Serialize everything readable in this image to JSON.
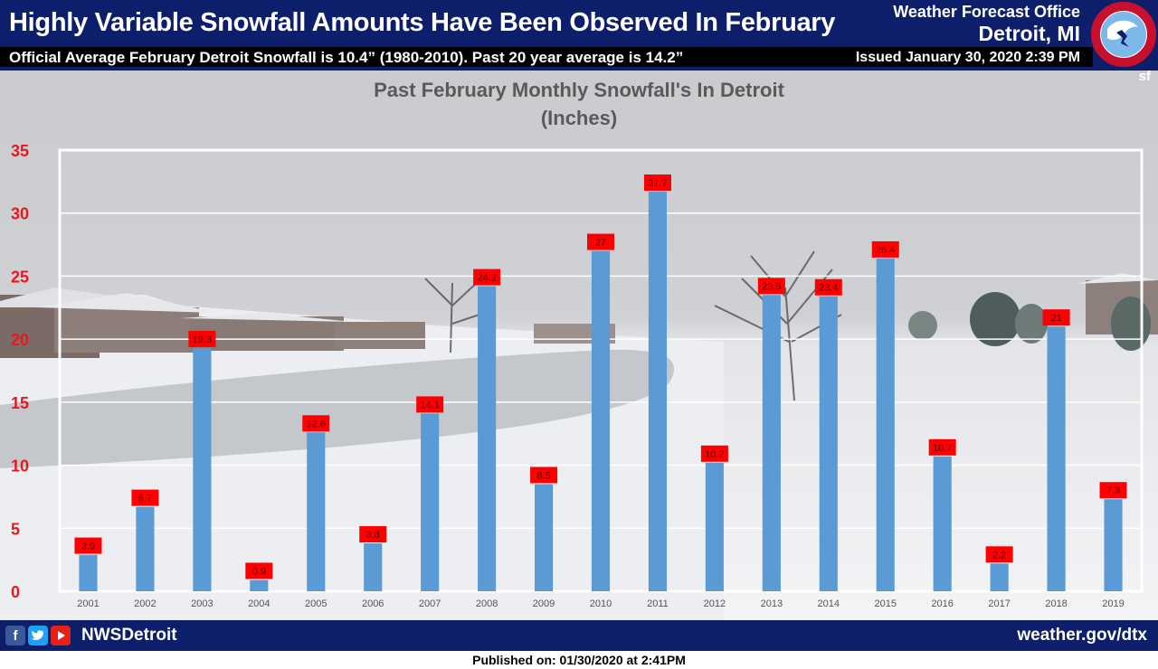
{
  "header": {
    "title": "Highly Variable Snowfall Amounts Have Been Observed In February",
    "office": "Weather Forecast Office",
    "city": "Detroit, MI",
    "subtitle": "Official Average  February Detroit Snowfall  is 10.4” (1980-2010).  Past 20 year average is 14.2”",
    "issued": "Issued January 30, 2020 2:39 PM",
    "initials": "sf"
  },
  "footer": {
    "handle": "NWSDetroit",
    "website": "weather.gov/dtx",
    "published": "Published on: 01/30/2020 at 2:41PM"
  },
  "colors": {
    "header_bg": "#0d1f6b",
    "bar": "#5b9bd5",
    "label_bg": "#ff0000",
    "axis_text": "#e8191c"
  },
  "chart_data": {
    "type": "bar",
    "title": "Past February Monthly Snowfall's In Detroit",
    "subtitle": "(Inches)",
    "categories": [
      "2001",
      "2002",
      "2003",
      "2004",
      "2005",
      "2006",
      "2007",
      "2008",
      "2009",
      "2010",
      "2011",
      "2012",
      "2013",
      "2014",
      "2015",
      "2016",
      "2017",
      "2018",
      "2019"
    ],
    "values": [
      2.9,
      6.7,
      19.3,
      0.9,
      12.6,
      3.8,
      14.1,
      24.2,
      8.5,
      27,
      31.7,
      10.2,
      23.5,
      23.4,
      26.4,
      10.7,
      2.2,
      21,
      7.3
    ],
    "data_labels": [
      "2.9",
      "6.7",
      "19.3",
      "0.9",
      "12.6",
      "3.8",
      "14.1",
      "24.2",
      "8.5",
      "27",
      "31.7",
      "10.2",
      "23.5",
      "23.4",
      "26.4",
      "10.7",
      "2.2",
      "21",
      "7.3"
    ],
    "ylim": [
      0,
      35
    ],
    "yticks": [
      0,
      5,
      10,
      15,
      20,
      25,
      30,
      35
    ],
    "grid": true,
    "legend": "none"
  }
}
